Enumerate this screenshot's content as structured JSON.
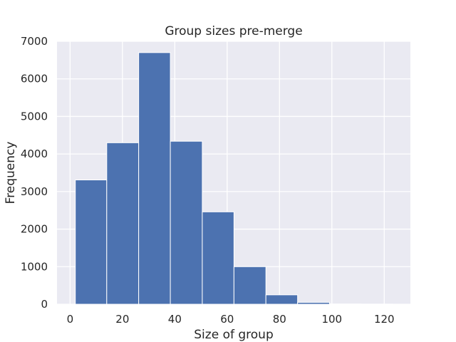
{
  "chart_data": {
    "type": "bar",
    "title": "Group sizes pre-merge",
    "xlabel": "Size of group",
    "ylabel": "Frequency",
    "xlim": [
      -5,
      130
    ],
    "ylim": [
      0,
      7000
    ],
    "xticks": [
      0,
      20,
      40,
      60,
      80,
      100,
      120
    ],
    "yticks": [
      0,
      1000,
      2000,
      3000,
      4000,
      5000,
      6000,
      7000
    ],
    "grid": true,
    "bar_color": "#4c72b0",
    "plot_background": "#eaeaf2",
    "bins": [
      {
        "x_start": 2,
        "x_end": 14,
        "value": 3310
      },
      {
        "x_start": 14,
        "x_end": 26.2,
        "value": 4300
      },
      {
        "x_start": 26.2,
        "x_end": 38.3,
        "value": 6700
      },
      {
        "x_start": 38.3,
        "x_end": 50.5,
        "value": 4340
      },
      {
        "x_start": 50.5,
        "x_end": 62.6,
        "value": 2460
      },
      {
        "x_start": 62.6,
        "x_end": 74.8,
        "value": 1000
      },
      {
        "x_start": 74.8,
        "x_end": 86.9,
        "value": 250
      },
      {
        "x_start": 86.9,
        "x_end": 99.1,
        "value": 50
      },
      {
        "x_start": 99.1,
        "x_end": 111.2,
        "value": 8
      },
      {
        "x_start": 111.2,
        "x_end": 123.4,
        "value": 3
      }
    ]
  }
}
